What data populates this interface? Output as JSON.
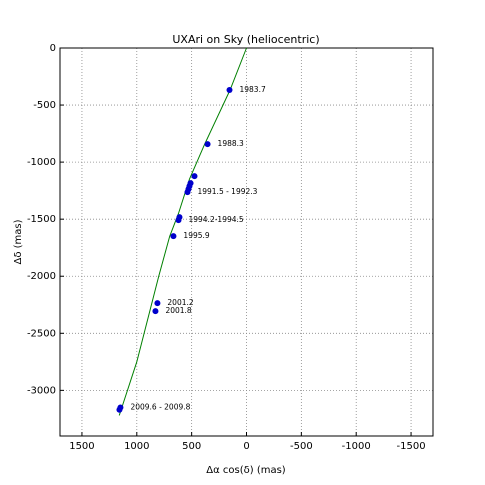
{
  "chart_data": {
    "type": "scatter",
    "title": "UXAri on Sky (heliocentric)",
    "x_label": "Δα cos(δ) (mas)",
    "y_label": "Δδ (mas)",
    "xlim": [
      1700,
      -1700
    ],
    "ylim": [
      -3400,
      0
    ],
    "xticks": [
      1500,
      1000,
      500,
      0,
      -500,
      -1000,
      -1500
    ],
    "yticks": [
      0,
      -500,
      -1000,
      -1500,
      -2000,
      -2500,
      -3000
    ],
    "grid": true,
    "series": [
      {
        "color": "#008000",
        "style": "line",
        "x": [
          1160,
          1000,
          880,
          800,
          700,
          620,
          520,
          380,
          150,
          0
        ],
        "y": [
          -3220,
          -2750,
          -2300,
          -2000,
          -1650,
          -1450,
          -1150,
          -840,
          -368,
          0
        ]
      },
      {
        "color": "#0000cc",
        "style": "points",
        "x": [
          155,
          355,
          474,
          510,
          520,
          529,
          538,
          611,
          620,
          666,
          812,
          830,
          1149,
          1158
        ],
        "y": [
          -368,
          -842,
          -1123,
          -1184,
          -1210,
          -1237,
          -1263,
          -1482,
          -1508,
          -1649,
          -2236,
          -2306,
          -3150,
          -3170
        ],
        "point_labels": [
          "1983.7",
          "1988.3",
          null,
          null,
          null,
          null,
          "1991.5 - 1992.3",
          null,
          "1994.2-1994.5",
          "1995.9",
          "2001.2",
          "2001.8",
          "2009.6 - 2009.8",
          null
        ]
      }
    ]
  }
}
